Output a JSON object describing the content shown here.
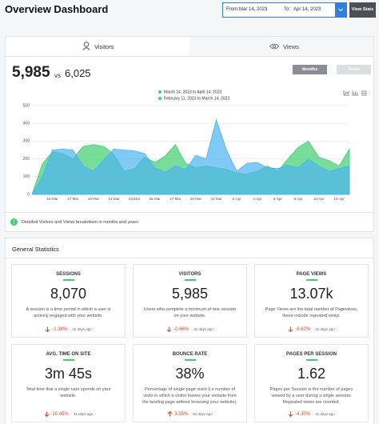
{
  "header": {
    "title": "Overview Dashboard",
    "from_label": "From:",
    "from_date": "Mar 14, 2023",
    "to_label": "To:",
    "to_date": "Apr 14, 2023",
    "button": "View Stats"
  },
  "tabs": [
    "Visitors",
    "Views"
  ],
  "summary": {
    "current": "5,985",
    "vs": "vs",
    "previous": "6,025",
    "buttons": [
      "Months",
      "Years"
    ]
  },
  "chart_data": {
    "type": "area",
    "categories": [
      null,
      null,
      "15-Mar",
      null,
      "17-Mar",
      null,
      "19-Mar",
      null,
      "21-Mar",
      null,
      "23-Mar",
      null,
      "25-Mar",
      null,
      "27-Mar",
      null,
      "29-Mar",
      null,
      "31-Mar",
      null,
      "2-Apr",
      null,
      "4-Apr",
      null,
      "6-Apr",
      null,
      "8-Apr",
      null,
      "10-Apr",
      null,
      "12-Apr",
      null
    ],
    "series": [
      {
        "name": "March 14, 2023 to April 14, 2023",
        "color": "#4cb3f2",
        "values": [
          0,
          100,
          250,
          255,
          250,
          160,
          130,
          195,
          255,
          250,
          245,
          230,
          150,
          125,
          160,
          140,
          220,
          200,
          420,
          250,
          130,
          175,
          180,
          150,
          145,
          165,
          150,
          200,
          160,
          130,
          145,
          160
        ]
      },
      {
        "name": "February 11, 2023 to March 14, 2023",
        "color": "#3fcf6e",
        "values": [
          0,
          170,
          240,
          230,
          200,
          270,
          280,
          270,
          225,
          130,
          145,
          210,
          180,
          215,
          280,
          175,
          150,
          160,
          150,
          140,
          120,
          115,
          130,
          160,
          130,
          200,
          265,
          300,
          210,
          190,
          160,
          255
        ]
      }
    ],
    "ylim": [
      0,
      500
    ],
    "yticks": [
      0,
      100,
      200,
      300,
      400,
      500
    ],
    "grid": true
  },
  "note": "Detailed Visitors and Views breakdown in months and years",
  "stats": {
    "title": "General Statistics",
    "cards": [
      {
        "title": "SESSIONS",
        "value": "8,070",
        "description": "A session is a time period in which a user is actively engaged with your website.",
        "change": "-1.38%",
        "arrow": "down",
        "ago": "31 days ago"
      },
      {
        "title": "VISITORS",
        "value": "5,985",
        "description": "Users who complete a minimum of one session on your website.",
        "change": "-0.66%",
        "arrow": "down",
        "ago": "31 days ago"
      },
      {
        "title": "PAGE VIEWS",
        "value": "13.07k",
        "description": "Page Views are the total number of Pageviews, these include repeated views.",
        "change": "-5.62%",
        "arrow": "down",
        "ago": "31 days ago"
      },
      {
        "title": "AVG. TIME ON SITE",
        "value": "3m 45s",
        "description": "Total time that a single user spends on your website.",
        "change": "-10.45%",
        "arrow": "down",
        "ago": "31 days ago"
      },
      {
        "title": "BOUNCE RATE",
        "value": "38%",
        "description": "Percentage of single page visits (i.e number of visits in which a visitor leaves your website from the landing page without browsing your website).",
        "change": "3.55%",
        "arrow": "up",
        "ago": "31 days ago"
      },
      {
        "title": "PAGES PER SESSION",
        "value": "1.62",
        "description": "Pages per Session is the number of pages viewed by a user during a single session. Repeated views are counted.",
        "change": "-4.30%",
        "arrow": "down",
        "ago": "31 days ago"
      }
    ]
  }
}
